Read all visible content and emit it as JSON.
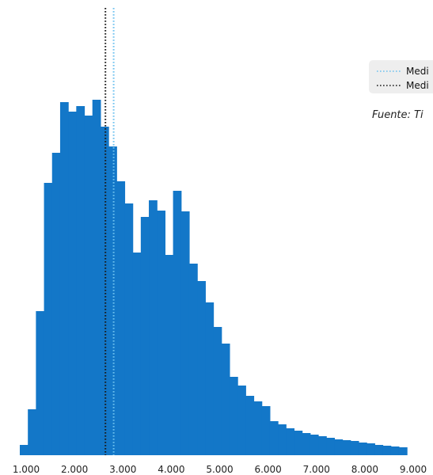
{
  "chart_data": {
    "type": "bar",
    "title": "",
    "xlabel": "",
    "ylabel": "",
    "xlim": [
      1000,
      9000
    ],
    "x_ticks": [
      1000,
      2000,
      3000,
      4000,
      5000,
      6000,
      7000,
      8000,
      9000
    ],
    "x_tick_labels": [
      "1.000",
      "2.000",
      "3.000",
      "4.000",
      "5.000",
      "6.000",
      "7.000",
      "8.000",
      "9.000"
    ],
    "bin_start": 1000,
    "bin_width": 166.7,
    "values": [
      13,
      58,
      182,
      344,
      382,
      446,
      434,
      441,
      429,
      449,
      415,
      390,
      346,
      318,
      256,
      301,
      322,
      309,
      253,
      334,
      308,
      242,
      220,
      193,
      162,
      141,
      99,
      88,
      75,
      68,
      62,
      43,
      39,
      34,
      31,
      28,
      26,
      24,
      22,
      20,
      19,
      18,
      16,
      15,
      13,
      12,
      11,
      10
    ],
    "ylim": [
      0,
      560
    ],
    "bar_color": "#1377c8",
    "grid": false,
    "reference_lines": [
      {
        "label": "Medi",
        "x": 2940,
        "color": "#6cc1ef",
        "style": "dotted"
      },
      {
        "label": "Medi",
        "x": 2770,
        "color": "#1a1a1a",
        "style": "dotted"
      }
    ],
    "legend_position": "top-right",
    "source_note": "Fuente: Ti"
  }
}
